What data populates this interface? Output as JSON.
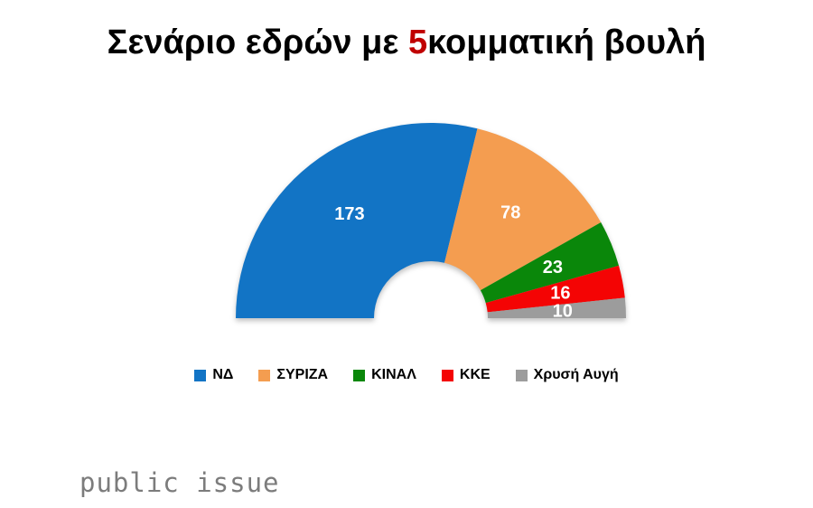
{
  "title": {
    "part1": "Σενάριο εδρών με ",
    "highlight": "5",
    "part2": "κομματική βουλή",
    "highlight_color": "#C00000",
    "text_color": "#000000"
  },
  "chart_data": {
    "type": "pie",
    "variant": "half-donut",
    "title": "Σενάριο εδρών με 5κομματική βουλή",
    "total": 300,
    "start_angle_deg": 180,
    "end_angle_deg": 0,
    "donut_hole": true,
    "labels_visible": true,
    "label_color": "#FFFFFF",
    "legend_position": "bottom",
    "series": [
      {
        "name": "ΝΔ",
        "value": 173,
        "color": "#1274C5"
      },
      {
        "name": "ΣΥΡΙΖΑ",
        "value": 78,
        "color": "#F49D50"
      },
      {
        "name": "ΚΙΝΑΛ",
        "value": 23,
        "color": "#0A870A"
      },
      {
        "name": "ΚΚΕ",
        "value": 16,
        "color": "#F40404"
      },
      {
        "name": "Χρυσή Αυγή",
        "value": 10,
        "color": "#9C9C9C"
      }
    ]
  },
  "footer": {
    "brand": "public issue",
    "brand_color": "#7C7C7C"
  }
}
